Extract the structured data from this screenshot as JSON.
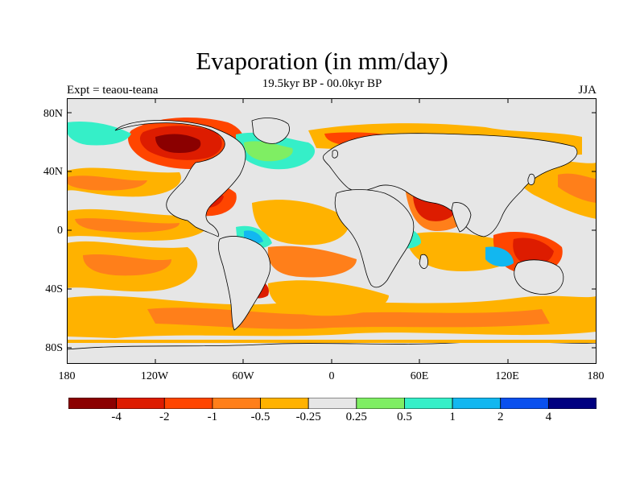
{
  "figure": {
    "title": "Evaporation (in mm/day)",
    "subtitle": "19.5kyr BP - 00.0kyr BP",
    "left_label": "Expt = teaou-teana",
    "right_label": "JJA"
  },
  "map": {
    "projection": "cylindrical equidistant",
    "lat_ticks": [
      "80N",
      "40N",
      "0",
      "40S",
      "80S"
    ],
    "lon_ticks": [
      "180",
      "120W",
      "60W",
      "0",
      "60E",
      "120E",
      "180"
    ],
    "missing_color": "#e6e6e6",
    "ocean_patterns": [
      {
        "name": "north-atlantic-canada",
        "level": "-4"
      },
      {
        "name": "gulf-mexico",
        "level": "-2"
      },
      {
        "name": "arabian-sea",
        "level": "-2"
      },
      {
        "name": "indonesia-north-australia",
        "level": "-2"
      },
      {
        "name": "north-atlantic",
        "level": "1"
      },
      {
        "name": "north-pacific",
        "level": "-0.5"
      },
      {
        "name": "southern-ocean",
        "level": "-0.5"
      }
    ]
  },
  "colorbar": {
    "levels": [
      "-4",
      "-2",
      "-1",
      "-0.5",
      "-0.25",
      "0.25",
      "0.5",
      "1",
      "2",
      "4"
    ],
    "colors": [
      "#8b0000",
      "#dd1c00",
      "#ff4500",
      "#ff7f1a",
      "#ffb200",
      "#e6e6e6",
      "#7fee63",
      "#35efc8",
      "#12b7f0",
      "#0a50ee",
      "#000080"
    ]
  }
}
